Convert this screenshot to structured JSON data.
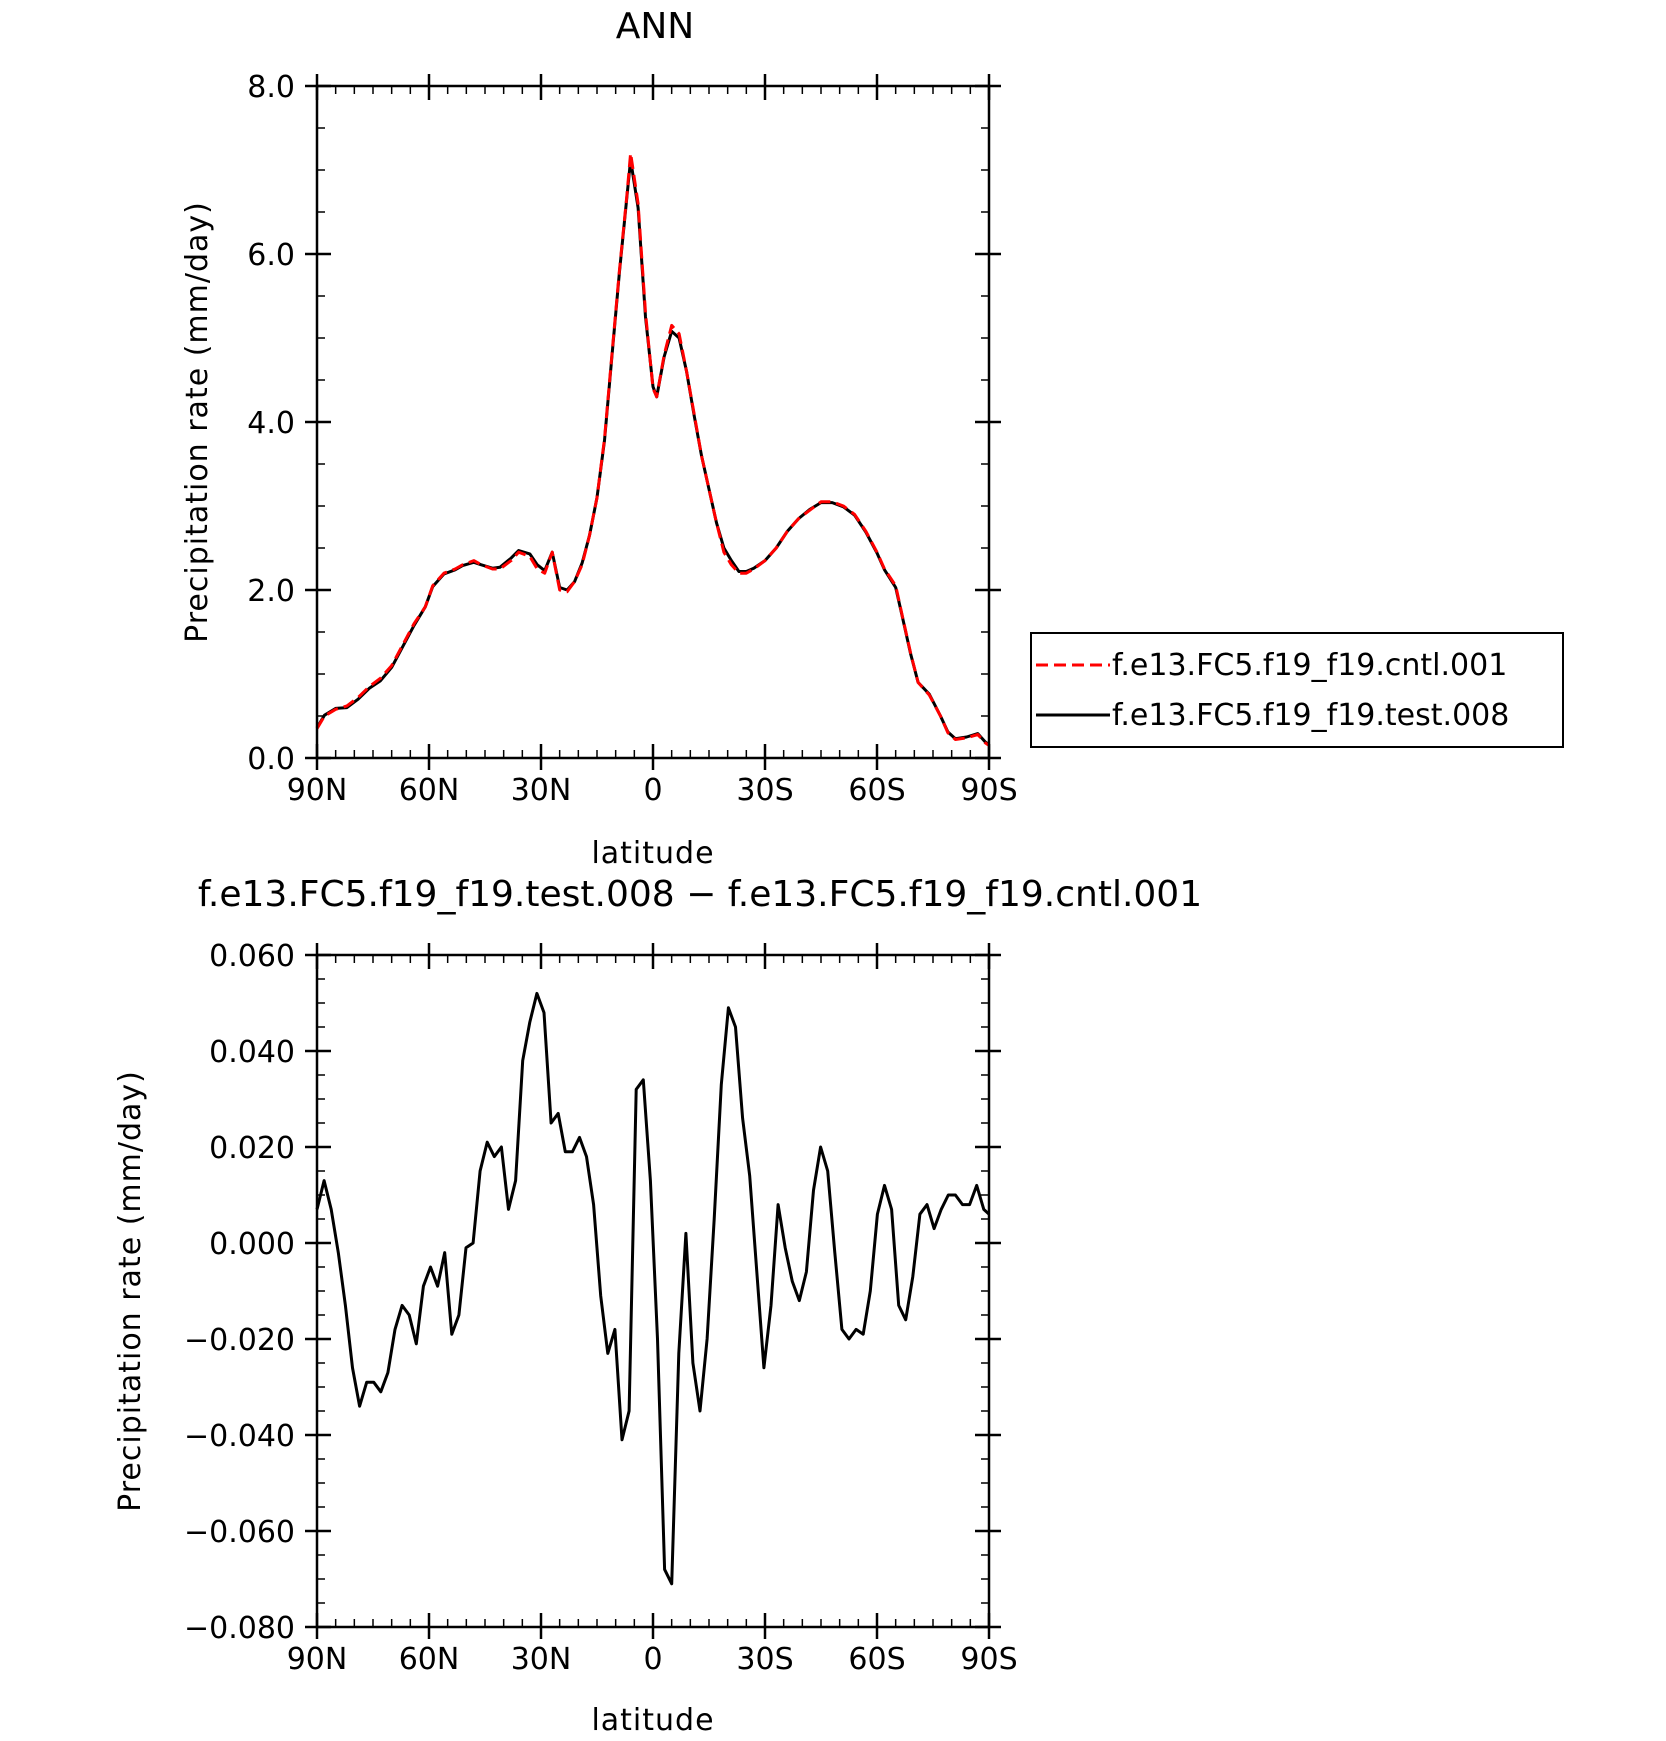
{
  "chart_data": [
    {
      "type": "line",
      "title": "ANN",
      "xlabel": "latitude",
      "ylabel": "Precipitation rate (mm/day)",
      "xlim": [
        90,
        -90
      ],
      "ylim": [
        0,
        8
      ],
      "x_ticks": [
        90,
        60,
        30,
        0,
        -30,
        -60,
        -90
      ],
      "x_tick_labels": [
        "90N",
        "60N",
        "30N",
        "0",
        "30S",
        "60S",
        "90S"
      ],
      "y_ticks": [
        0,
        2,
        4,
        6,
        8
      ],
      "y_tick_labels": [
        "0.0",
        "2.0",
        "4.0",
        "6.0",
        "8.0"
      ],
      "legend_position": "right",
      "series": [
        {
          "name": "f.e13.FC5.f19_f19.cntl.001",
          "color": "#ff0000",
          "style": "dashed",
          "points": [
            [
              90,
              0.35
            ],
            [
              88,
              0.5
            ],
            [
              85,
              0.58
            ],
            [
              82,
              0.62
            ],
            [
              79,
              0.72
            ],
            [
              76,
              0.85
            ],
            [
              73,
              0.95
            ],
            [
              70,
              1.1
            ],
            [
              67,
              1.35
            ],
            [
              64,
              1.6
            ],
            [
              61,
              1.8
            ],
            [
              59,
              2.05
            ],
            [
              56,
              2.2
            ],
            [
              53,
              2.25
            ],
            [
              51,
              2.3
            ],
            [
              48,
              2.35
            ],
            [
              46,
              2.3
            ],
            [
              43,
              2.25
            ],
            [
              41,
              2.25
            ],
            [
              38,
              2.35
            ],
            [
              36,
              2.45
            ],
            [
              33,
              2.4
            ],
            [
              31,
              2.25
            ],
            [
              29,
              2.2
            ],
            [
              27,
              2.45
            ],
            [
              25,
              2.0
            ],
            [
              23,
              1.98
            ],
            [
              21,
              2.1
            ],
            [
              19,
              2.3
            ],
            [
              17,
              2.65
            ],
            [
              15,
              3.1
            ],
            [
              13,
              3.8
            ],
            [
              11,
              4.8
            ],
            [
              9,
              5.8
            ],
            [
              7,
              6.7
            ],
            [
              6,
              7.2
            ],
            [
              4,
              6.6
            ],
            [
              2,
              5.3
            ],
            [
              0,
              4.4
            ],
            [
              -1,
              4.3
            ],
            [
              -3,
              4.8
            ],
            [
              -5,
              5.15
            ],
            [
              -7,
              5.05
            ],
            [
              -9,
              4.6
            ],
            [
              -11,
              4.1
            ],
            [
              -13,
              3.6
            ],
            [
              -15,
              3.2
            ],
            [
              -17,
              2.8
            ],
            [
              -19,
              2.45
            ],
            [
              -21,
              2.3
            ],
            [
              -23,
              2.2
            ],
            [
              -25,
              2.2
            ],
            [
              -27,
              2.25
            ],
            [
              -30,
              2.35
            ],
            [
              -33,
              2.5
            ],
            [
              -36,
              2.7
            ],
            [
              -39,
              2.85
            ],
            [
              -42,
              2.95
            ],
            [
              -45,
              3.05
            ],
            [
              -48,
              3.05
            ],
            [
              -51,
              3.0
            ],
            [
              -54,
              2.9
            ],
            [
              -57,
              2.7
            ],
            [
              -60,
              2.45
            ],
            [
              -62,
              2.25
            ],
            [
              -65,
              2.05
            ],
            [
              -67,
              1.65
            ],
            [
              -69,
              1.25
            ],
            [
              -71,
              0.9
            ],
            [
              -74,
              0.75
            ],
            [
              -77,
              0.5
            ],
            [
              -79,
              0.3
            ],
            [
              -81,
              0.22
            ],
            [
              -84,
              0.24
            ],
            [
              -87,
              0.28
            ],
            [
              -89,
              0.18
            ],
            [
              -90,
              0.15
            ]
          ]
        },
        {
          "name": "f.e13.FC5.f19_f19.test.008",
          "color": "#000000",
          "style": "solid",
          "points": [
            [
              90,
              0.36
            ],
            [
              88,
              0.51
            ],
            [
              85,
              0.59
            ],
            [
              82,
              0.6
            ],
            [
              79,
              0.7
            ],
            [
              76,
              0.83
            ],
            [
              73,
              0.92
            ],
            [
              70,
              1.08
            ],
            [
              67,
              1.33
            ],
            [
              64,
              1.58
            ],
            [
              61,
              1.8
            ],
            [
              59,
              2.04
            ],
            [
              56,
              2.19
            ],
            [
              53,
              2.24
            ],
            [
              51,
              2.29
            ],
            [
              48,
              2.33
            ],
            [
              46,
              2.3
            ],
            [
              43,
              2.26
            ],
            [
              41,
              2.27
            ],
            [
              38,
              2.38
            ],
            [
              36,
              2.47
            ],
            [
              33,
              2.43
            ],
            [
              31,
              2.3
            ],
            [
              29,
              2.23
            ],
            [
              27,
              2.45
            ],
            [
              25,
              2.03
            ],
            [
              23,
              2.0
            ],
            [
              21,
              2.1
            ],
            [
              19,
              2.32
            ],
            [
              17,
              2.65
            ],
            [
              15,
              3.1
            ],
            [
              13,
              3.78
            ],
            [
              11,
              4.78
            ],
            [
              9,
              5.78
            ],
            [
              7,
              6.68
            ],
            [
              6,
              7.12
            ],
            [
              4,
              6.55
            ],
            [
              2,
              5.25
            ],
            [
              0,
              4.42
            ],
            [
              -1,
              4.3
            ],
            [
              -3,
              4.78
            ],
            [
              -5,
              5.08
            ],
            [
              -7,
              5.0
            ],
            [
              -9,
              4.6
            ],
            [
              -11,
              4.08
            ],
            [
              -13,
              3.6
            ],
            [
              -15,
              3.2
            ],
            [
              -17,
              2.8
            ],
            [
              -19,
              2.5
            ],
            [
              -21,
              2.35
            ],
            [
              -23,
              2.22
            ],
            [
              -25,
              2.22
            ],
            [
              -27,
              2.26
            ],
            [
              -30,
              2.35
            ],
            [
              -33,
              2.5
            ],
            [
              -36,
              2.7
            ],
            [
              -39,
              2.85
            ],
            [
              -42,
              2.96
            ],
            [
              -45,
              3.04
            ],
            [
              -48,
              3.04
            ],
            [
              -51,
              2.99
            ],
            [
              -54,
              2.89
            ],
            [
              -57,
              2.69
            ],
            [
              -60,
              2.44
            ],
            [
              -62,
              2.24
            ],
            [
              -65,
              2.03
            ],
            [
              -67,
              1.64
            ],
            [
              -69,
              1.24
            ],
            [
              -71,
              0.9
            ],
            [
              -74,
              0.76
            ],
            [
              -77,
              0.5
            ],
            [
              -79,
              0.31
            ],
            [
              -81,
              0.23
            ],
            [
              -84,
              0.25
            ],
            [
              -87,
              0.29
            ],
            [
              -89,
              0.19
            ],
            [
              -90,
              0.16
            ]
          ]
        }
      ]
    },
    {
      "type": "line",
      "title": "f.e13.FC5.f19_f19.test.008 − f.e13.FC5.f19_f19.cntl.001",
      "xlabel": "latitude",
      "ylabel": "Precipitation rate (mm/day)",
      "xlim": [
        90,
        -90
      ],
      "ylim": [
        -0.08,
        0.06
      ],
      "x_ticks": [
        90,
        60,
        30,
        0,
        -30,
        -60,
        -90
      ],
      "x_tick_labels": [
        "90N",
        "60N",
        "30N",
        "0",
        "30S",
        "60S",
        "90S"
      ],
      "y_ticks": [
        -0.08,
        -0.06,
        -0.04,
        -0.02,
        0,
        0.02,
        0.04,
        0.06
      ],
      "y_tick_labels": [
        "−0.080",
        "−0.060",
        "−0.040",
        "−0.020",
        "0.000",
        "0.020",
        "0.040",
        "0.060"
      ],
      "series": [
        {
          "color": "#000000",
          "style": "solid",
          "points": [
            [
              90,
              0.007
            ],
            [
              88.1,
              0.013
            ],
            [
              86.2,
              0.007
            ],
            [
              84.3,
              -0.002
            ],
            [
              82.4,
              -0.013
            ],
            [
              80.5,
              -0.026
            ],
            [
              78.6,
              -0.034
            ],
            [
              76.7,
              -0.029
            ],
            [
              74.8,
              -0.029
            ],
            [
              72.9,
              -0.031
            ],
            [
              71,
              -0.027
            ],
            [
              69.1,
              -0.018
            ],
            [
              67.2,
              -0.013
            ],
            [
              65.3,
              -0.015
            ],
            [
              63.4,
              -0.021
            ],
            [
              61.5,
              -0.009
            ],
            [
              59.6,
              -0.005
            ],
            [
              57.7,
              -0.009
            ],
            [
              55.8,
              -0.002
            ],
            [
              53.9,
              -0.019
            ],
            [
              52,
              -0.015
            ],
            [
              50.1,
              -0.001
            ],
            [
              48.2,
              0.0
            ],
            [
              46.3,
              0.015
            ],
            [
              44.4,
              0.021
            ],
            [
              42.5,
              0.018
            ],
            [
              40.6,
              0.02
            ],
            [
              38.7,
              0.007
            ],
            [
              36.8,
              0.013
            ],
            [
              34.9,
              0.038
            ],
            [
              33,
              0.046
            ],
            [
              31.1,
              0.052
            ],
            [
              29.2,
              0.048
            ],
            [
              27.3,
              0.025
            ],
            [
              25.4,
              0.027
            ],
            [
              23.5,
              0.019
            ],
            [
              21.6,
              0.019
            ],
            [
              19.7,
              0.022
            ],
            [
              17.8,
              0.018
            ],
            [
              15.9,
              0.008
            ],
            [
              14,
              -0.011
            ],
            [
              12.1,
              -0.023
            ],
            [
              10.2,
              -0.018
            ],
            [
              8.3,
              -0.041
            ],
            [
              6.4,
              -0.035
            ],
            [
              4.5,
              0.032
            ],
            [
              2.6,
              0.034
            ],
            [
              0.7,
              0.013
            ],
            [
              -1.2,
              -0.02
            ],
            [
              -3.1,
              -0.068
            ],
            [
              -5,
              -0.071
            ],
            [
              -6.9,
              -0.023
            ],
            [
              -8.8,
              0.002
            ],
            [
              -10.7,
              -0.025
            ],
            [
              -12.6,
              -0.035
            ],
            [
              -14.5,
              -0.02
            ],
            [
              -16.4,
              0.005
            ],
            [
              -18.3,
              0.033
            ],
            [
              -20.2,
              0.049
            ],
            [
              -22.1,
              0.045
            ],
            [
              -24,
              0.026
            ],
            [
              -25.9,
              0.014
            ],
            [
              -27.8,
              -0.006
            ],
            [
              -29.7,
              -0.026
            ],
            [
              -31.6,
              -0.013
            ],
            [
              -33.5,
              0.008
            ],
            [
              -35.4,
              -0.001
            ],
            [
              -37.3,
              -0.008
            ],
            [
              -39.2,
              -0.012
            ],
            [
              -41.1,
              -0.006
            ],
            [
              -43,
              0.011
            ],
            [
              -44.9,
              0.02
            ],
            [
              -46.8,
              0.015
            ],
            [
              -48.7,
              -0.002
            ],
            [
              -50.6,
              -0.018
            ],
            [
              -52.5,
              -0.02
            ],
            [
              -54.4,
              -0.018
            ],
            [
              -56.3,
              -0.019
            ],
            [
              -58.2,
              -0.01
            ],
            [
              -60.1,
              0.006
            ],
            [
              -62,
              0.012
            ],
            [
              -63.9,
              0.007
            ],
            [
              -65.8,
              -0.013
            ],
            [
              -67.7,
              -0.016
            ],
            [
              -69.6,
              -0.007
            ],
            [
              -71.5,
              0.006
            ],
            [
              -73.4,
              0.008
            ],
            [
              -75.3,
              0.003
            ],
            [
              -77.2,
              0.007
            ],
            [
              -79.1,
              0.01
            ],
            [
              -81,
              0.01
            ],
            [
              -82.9,
              0.008
            ],
            [
              -84.8,
              0.008
            ],
            [
              -86.7,
              0.012
            ],
            [
              -88.6,
              0.007
            ],
            [
              -90,
              0.006
            ]
          ]
        }
      ]
    }
  ]
}
